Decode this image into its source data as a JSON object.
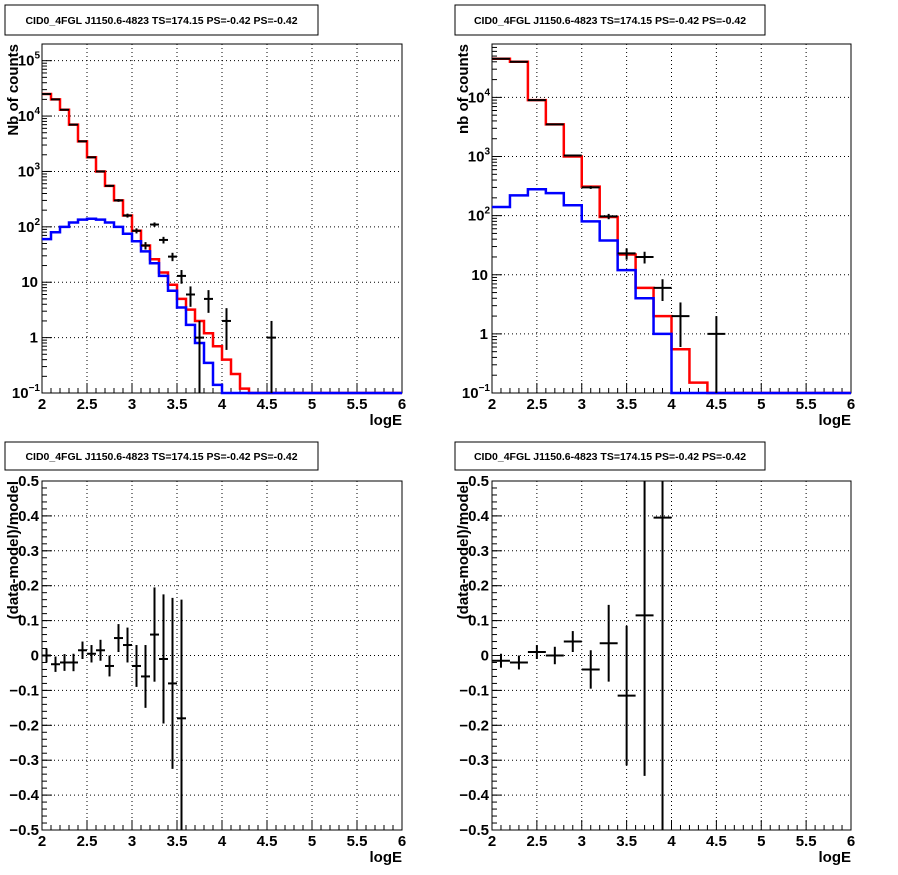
{
  "chart_data": [
    {
      "type": "line",
      "title": "CID0_4FGL J1150.6-4823 TS=174.15 PS=-0.42 PS=-0.42",
      "xlabel": "logE",
      "ylabel": "Nb of counts",
      "xlim": [
        2,
        6
      ],
      "ylim": [
        0.1,
        200000
      ],
      "yscale": "log",
      "grid": true,
      "x_ticks": [
        "2",
        "2.5",
        "3",
        "3.5",
        "4",
        "4.5",
        "5",
        "5.5",
        "6"
      ],
      "y_ticks": [
        {
          "v": 0.1,
          "b": "10",
          "e": "−1"
        },
        {
          "v": 1,
          "b": "1",
          "e": ""
        },
        {
          "v": 10,
          "b": "10",
          "e": ""
        },
        {
          "v": 100,
          "b": "10",
          "e": "2"
        },
        {
          "v": 1000,
          "b": "10",
          "e": "3"
        },
        {
          "v": 10000,
          "b": "10",
          "e": "4"
        },
        {
          "v": 100000,
          "b": "10",
          "e": "5"
        }
      ],
      "bin_edges": [
        2.0,
        2.1,
        2.2,
        2.3,
        2.4,
        2.5,
        2.6,
        2.7,
        2.8,
        2.9,
        3.0,
        3.1,
        3.2,
        3.3,
        3.4,
        3.5,
        3.6,
        3.7,
        3.8,
        3.9,
        4.0,
        4.1,
        4.2,
        4.3,
        4.4,
        4.5,
        4.6,
        4.7,
        4.8,
        4.9,
        5.0,
        5.1,
        5.2,
        5.3,
        5.4,
        5.5,
        5.6,
        5.7,
        5.8,
        5.9,
        6.0
      ],
      "series": [
        {
          "color": "#ff0000",
          "values": [
            25000,
            20000,
            13000,
            7000,
            3500,
            1800,
            1000,
            550,
            300,
            160,
            85,
            46,
            26,
            15,
            9,
            5,
            3.2,
            2.0,
            1.2,
            0.7,
            0.4,
            0.22,
            0.12,
            0.1,
            0.1,
            0.1,
            0.1,
            0.1,
            0.1,
            0.1,
            0.1,
            0.1,
            0.1,
            0.1,
            0.1,
            0.1,
            0.1,
            0.1,
            0.1,
            0.1
          ]
        },
        {
          "color": "#0000ff",
          "values": [
            60,
            80,
            100,
            120,
            135,
            140,
            135,
            120,
            100,
            75,
            55,
            36,
            22,
            13,
            7,
            3.5,
            1.7,
            0.8,
            0.35,
            0.14,
            0.1,
            0.1,
            0.1,
            0.1,
            0.1,
            0.1,
            0.1,
            0.1,
            0.1,
            0.1,
            0.1,
            0.1,
            0.1,
            0.1,
            0.1,
            0.1,
            0.1,
            0.1,
            0.1,
            0.1
          ]
        }
      ],
      "points": [
        {
          "x": 2.05,
          "y": 25000,
          "ylo": 24840,
          "yhi": 25160
        },
        {
          "x": 2.15,
          "y": 20000,
          "ylo": 19860,
          "yhi": 20140
        },
        {
          "x": 2.25,
          "y": 13000,
          "ylo": 12890,
          "yhi": 13110
        },
        {
          "x": 2.35,
          "y": 7000,
          "ylo": 6916,
          "yhi": 7084
        },
        {
          "x": 2.45,
          "y": 3500,
          "ylo": 3441,
          "yhi": 3559
        },
        {
          "x": 2.55,
          "y": 1800,
          "ylo": 1758,
          "yhi": 1842
        },
        {
          "x": 2.65,
          "y": 1000,
          "ylo": 968,
          "yhi": 1032
        },
        {
          "x": 2.75,
          "y": 550,
          "ylo": 527,
          "yhi": 573
        },
        {
          "x": 2.85,
          "y": 300,
          "ylo": 283,
          "yhi": 317
        },
        {
          "x": 2.95,
          "y": 160,
          "ylo": 147,
          "yhi": 173
        },
        {
          "x": 3.05,
          "y": 85,
          "ylo": 76,
          "yhi": 94
        },
        {
          "x": 3.15,
          "y": 46,
          "ylo": 39,
          "yhi": 53
        },
        {
          "x": 3.25,
          "y": 110,
          "ylo": 100,
          "yhi": 120
        },
        {
          "x": 3.35,
          "y": 58,
          "ylo": 50,
          "yhi": 66
        },
        {
          "x": 3.45,
          "y": 29,
          "ylo": 24,
          "yhi": 34
        },
        {
          "x": 3.55,
          "y": 13,
          "ylo": 9.4,
          "yhi": 16.6
        },
        {
          "x": 3.65,
          "y": 6,
          "ylo": 3.6,
          "yhi": 8.4
        },
        {
          "x": 3.75,
          "y": 1,
          "ylo": 0.1,
          "yhi": 2
        },
        {
          "x": 3.85,
          "y": 5,
          "ylo": 2.8,
          "yhi": 7.2
        },
        {
          "x": 4.05,
          "y": 2,
          "ylo": 0.6,
          "yhi": 3.4
        },
        {
          "x": 4.55,
          "y": 1,
          "ylo": 0.1,
          "yhi": 2
        }
      ]
    },
    {
      "type": "line",
      "title": "CID0_4FGL J1150.6-4823 TS=174.15 PS=-0.42 PS=-0.42",
      "xlabel": "logE",
      "ylabel": "nb of counts",
      "xlim": [
        2,
        6
      ],
      "ylim": [
        0.1,
        80000
      ],
      "yscale": "log",
      "grid": true,
      "x_ticks": [
        "2",
        "2.5",
        "3",
        "3.5",
        "4",
        "4.5",
        "5",
        "5.5",
        "6"
      ],
      "y_ticks": [
        {
          "v": 0.1,
          "b": "10",
          "e": "−1"
        },
        {
          "v": 1,
          "b": "1",
          "e": ""
        },
        {
          "v": 10,
          "b": "10",
          "e": ""
        },
        {
          "v": 100,
          "b": "10",
          "e": "2"
        },
        {
          "v": 1000,
          "b": "10",
          "e": "3"
        },
        {
          "v": 10000,
          "b": "10",
          "e": "4"
        }
      ],
      "bin_edges": [
        2.0,
        2.2,
        2.4,
        2.6,
        2.8,
        3.0,
        3.2,
        3.4,
        3.6,
        3.8,
        4.0,
        4.2,
        4.4,
        4.6,
        4.8,
        5.0,
        5.2,
        5.4,
        5.6,
        5.8,
        6.0
      ],
      "series": [
        {
          "color": "#ff0000",
          "values": [
            45000,
            40000,
            9000,
            3500,
            1000,
            310,
            95,
            22,
            6,
            2,
            0.55,
            0.15,
            0.1,
            0.1,
            0.1,
            0.1,
            0.1,
            0.1,
            0.1,
            0.1
          ]
        },
        {
          "color": "#0000ff",
          "values": [
            140,
            220,
            280,
            240,
            150,
            80,
            38,
            12,
            4,
            1.0,
            0.1,
            0.1,
            0.1,
            0.1,
            0.1,
            0.1,
            0.1,
            0.1,
            0.1,
            0.1
          ]
        }
      ],
      "points": [
        {
          "x": 2.1,
          "y": 45000,
          "ylo": 44790,
          "yhi": 45210
        },
        {
          "x": 2.3,
          "y": 40000,
          "ylo": 39800,
          "yhi": 40200
        },
        {
          "x": 2.5,
          "y": 9000,
          "ylo": 8905,
          "yhi": 9095
        },
        {
          "x": 2.7,
          "y": 3500,
          "ylo": 3441,
          "yhi": 3559
        },
        {
          "x": 2.9,
          "y": 1040,
          "ylo": 1008,
          "yhi": 1072
        },
        {
          "x": 3.1,
          "y": 300,
          "ylo": 283,
          "yhi": 317
        },
        {
          "x": 3.3,
          "y": 97,
          "ylo": 87,
          "yhi": 107
        },
        {
          "x": 3.5,
          "y": 23,
          "ylo": 18,
          "yhi": 28
        },
        {
          "x": 3.7,
          "y": 20,
          "ylo": 15.5,
          "yhi": 24.5
        },
        {
          "x": 3.9,
          "y": 6,
          "ylo": 3.6,
          "yhi": 8.4
        },
        {
          "x": 4.1,
          "y": 2,
          "ylo": 0.6,
          "yhi": 3.4
        },
        {
          "x": 4.5,
          "y": 1,
          "ylo": 0.1,
          "yhi": 2
        }
      ]
    },
    {
      "type": "scatter",
      "title": "CID0_4FGL J1150.6-4823 TS=174.15 PS=-0.42 PS=-0.42",
      "xlabel": "logE",
      "ylabel": "(data-model)/model",
      "xlim": [
        2,
        6
      ],
      "ylim": [
        -0.5,
        0.5
      ],
      "grid": true,
      "x_ticks": [
        "2",
        "2.5",
        "3",
        "3.5",
        "4",
        "4.5",
        "5",
        "5.5",
        "6"
      ],
      "y_ticks": [
        {
          "v": -0.5,
          "t": "−0.5"
        },
        {
          "v": -0.4,
          "t": "−0.4"
        },
        {
          "v": -0.3,
          "t": "−0.3"
        },
        {
          "v": -0.2,
          "t": "−0.2"
        },
        {
          "v": -0.1,
          "t": "−0.1"
        },
        {
          "v": 0,
          "t": "0"
        },
        {
          "v": 0.1,
          "t": "0.1"
        },
        {
          "v": 0.2,
          "t": "0.2"
        },
        {
          "v": 0.3,
          "t": "0.3"
        },
        {
          "v": 0.4,
          "t": "0.4"
        },
        {
          "v": 0.5,
          "t": "0.5"
        }
      ],
      "xerr": 0.05,
      "points": [
        {
          "x": 2.05,
          "y": 0.0,
          "err": 0.02
        },
        {
          "x": 2.15,
          "y": -0.025,
          "err": 0.022
        },
        {
          "x": 2.25,
          "y": -0.02,
          "err": 0.024
        },
        {
          "x": 2.35,
          "y": -0.02,
          "err": 0.025
        },
        {
          "x": 2.45,
          "y": 0.015,
          "err": 0.025
        },
        {
          "x": 2.55,
          "y": 0.005,
          "err": 0.025
        },
        {
          "x": 2.65,
          "y": 0.015,
          "err": 0.03
        },
        {
          "x": 2.75,
          "y": -0.03,
          "err": 0.03
        },
        {
          "x": 2.85,
          "y": 0.05,
          "err": 0.04
        },
        {
          "x": 2.95,
          "y": 0.03,
          "err": 0.05
        },
        {
          "x": 3.05,
          "y": -0.03,
          "err": 0.06
        },
        {
          "x": 3.15,
          "y": -0.06,
          "err": 0.09
        },
        {
          "x": 3.25,
          "y": 0.06,
          "err": 0.135
        },
        {
          "x": 3.35,
          "y": -0.01,
          "err": 0.185
        },
        {
          "x": 3.45,
          "y": -0.08,
          "err": 0.245
        },
        {
          "x": 3.55,
          "y": -0.18,
          "err": 0.34
        }
      ]
    },
    {
      "type": "scatter",
      "title": "CID0_4FGL J1150.6-4823 TS=174.15 PS=-0.42 PS=-0.42",
      "xlabel": "logE",
      "ylabel": "(data-model)/model",
      "xlim": [
        2,
        6
      ],
      "ylim": [
        -0.5,
        0.5
      ],
      "grid": true,
      "x_ticks": [
        "2",
        "2.5",
        "3",
        "3.5",
        "4",
        "4.5",
        "5",
        "5.5",
        "6"
      ],
      "y_ticks": [
        {
          "v": -0.5,
          "t": "−0.5"
        },
        {
          "v": -0.4,
          "t": "−0.4"
        },
        {
          "v": -0.3,
          "t": "−0.3"
        },
        {
          "v": -0.2,
          "t": "−0.2"
        },
        {
          "v": -0.1,
          "t": "−0.1"
        },
        {
          "v": 0,
          "t": "0"
        },
        {
          "v": 0.1,
          "t": "0.1"
        },
        {
          "v": 0.2,
          "t": "0.2"
        },
        {
          "v": 0.3,
          "t": "0.3"
        },
        {
          "v": 0.4,
          "t": "0.4"
        },
        {
          "v": 0.5,
          "t": "0.5"
        }
      ],
      "xerr": 0.1,
      "points": [
        {
          "x": 2.1,
          "y": -0.015,
          "err": 0.02
        },
        {
          "x": 2.3,
          "y": -0.02,
          "err": 0.02
        },
        {
          "x": 2.5,
          "y": 0.01,
          "err": 0.02
        },
        {
          "x": 2.7,
          "y": 0.0,
          "err": 0.025
        },
        {
          "x": 2.9,
          "y": 0.04,
          "err": 0.03
        },
        {
          "x": 3.1,
          "y": -0.04,
          "err": 0.055
        },
        {
          "x": 3.3,
          "y": 0.035,
          "err": 0.11
        },
        {
          "x": 3.5,
          "y": -0.115,
          "err": 0.2
        },
        {
          "x": 3.7,
          "y": 0.115,
          "err": 0.46
        },
        {
          "x": 3.9,
          "y": 0.395,
          "err": 0.95
        }
      ]
    }
  ]
}
